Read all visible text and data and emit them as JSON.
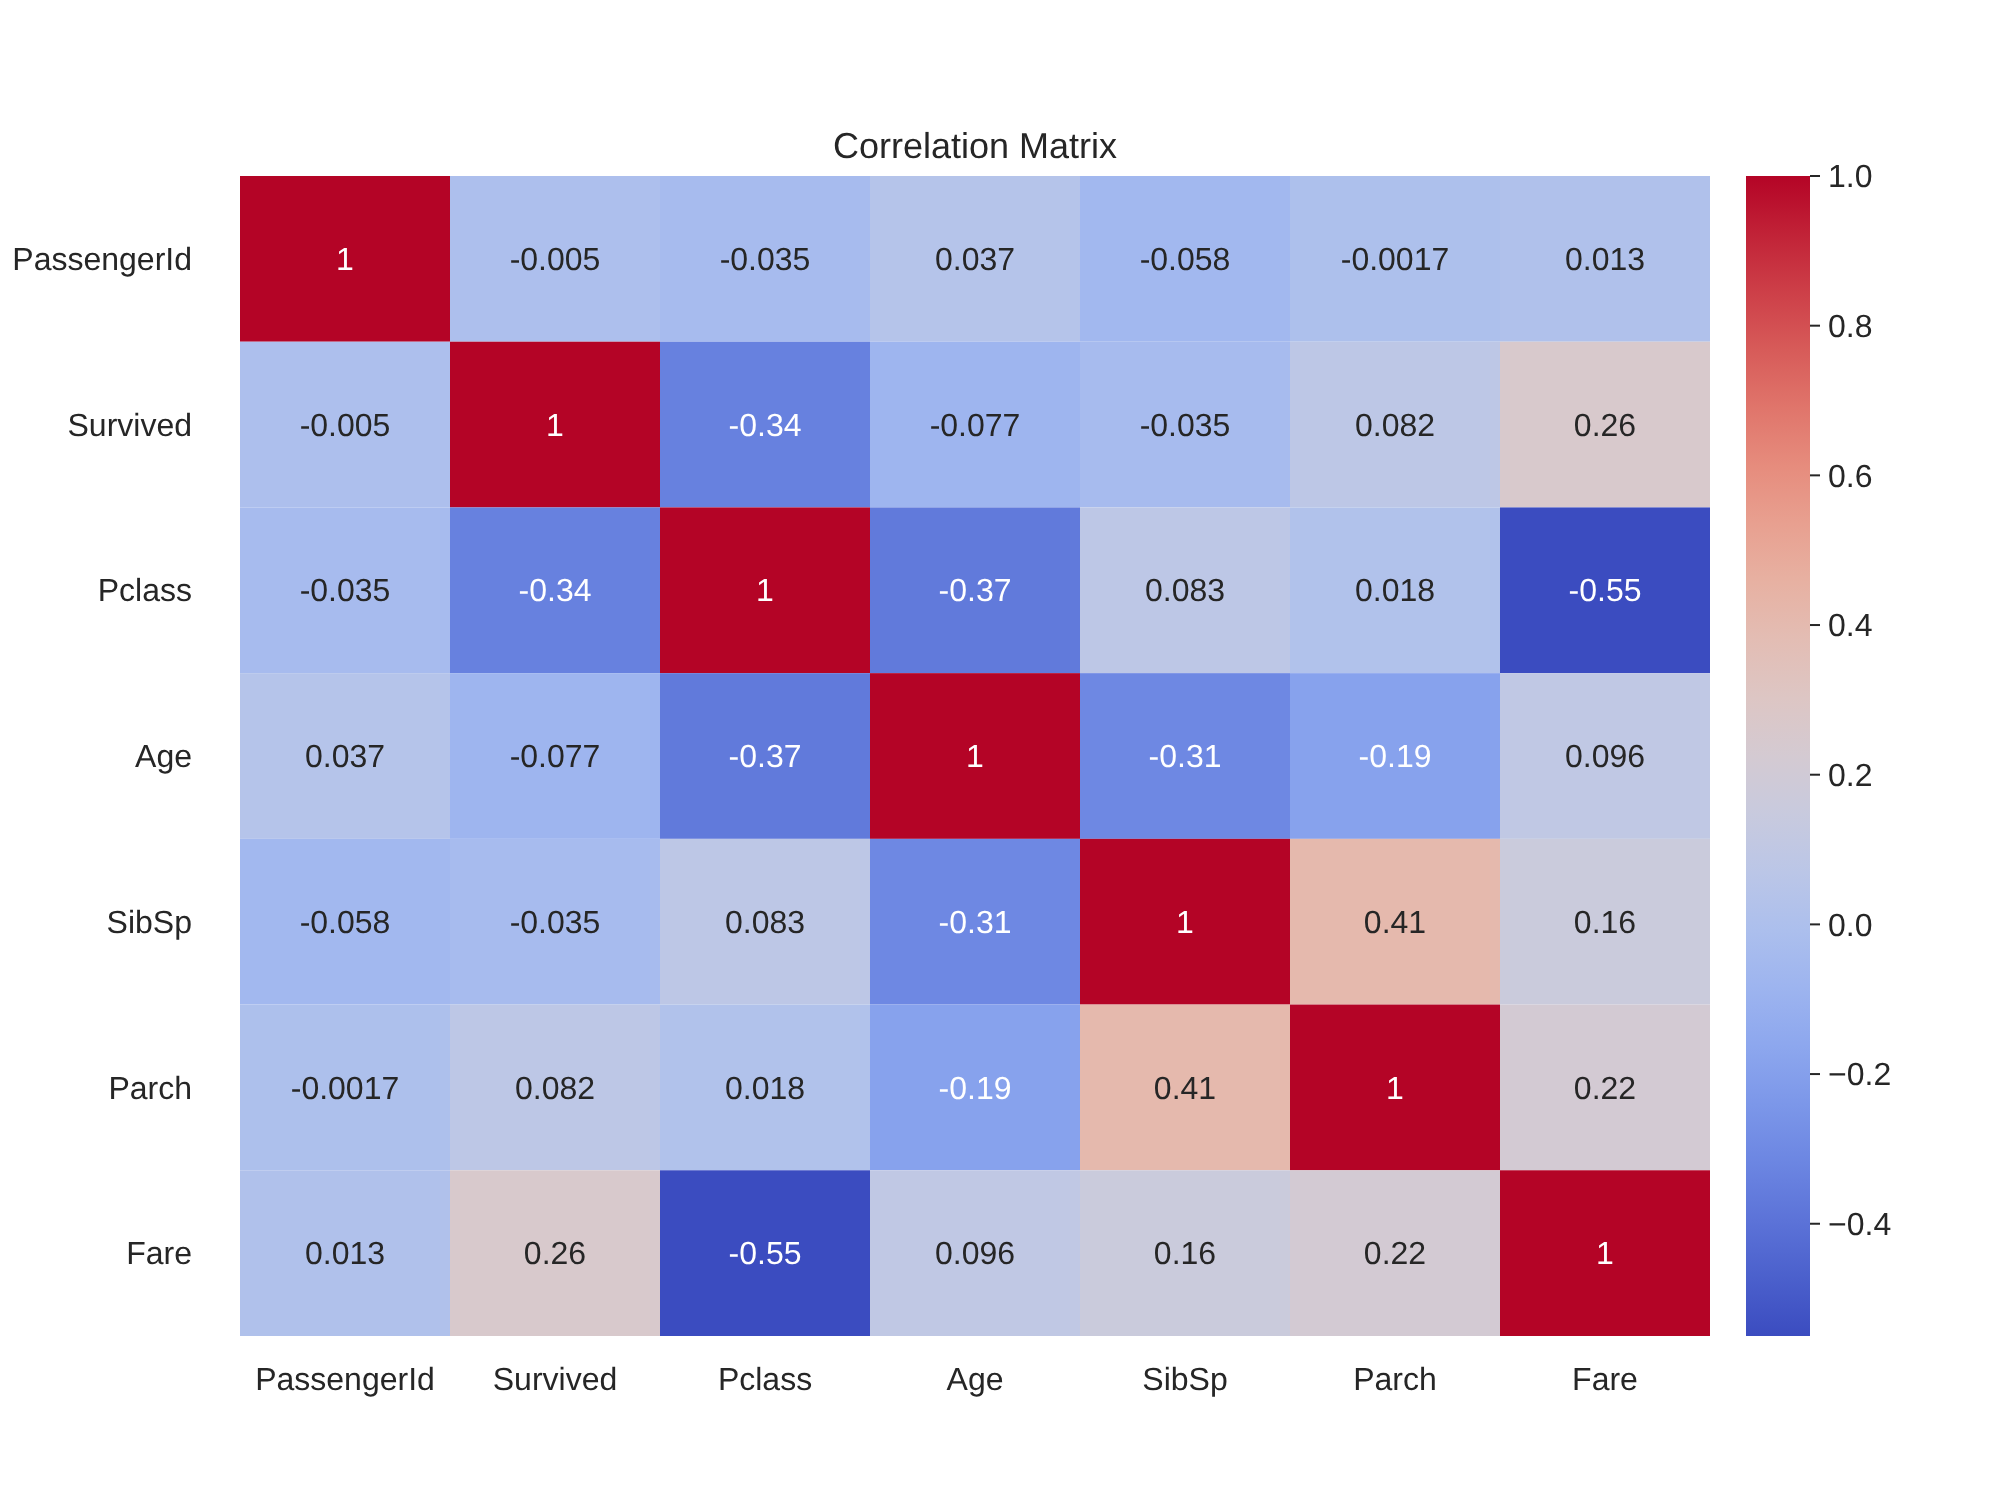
{
  "chart_data": {
    "type": "heatmap",
    "title": "Correlation Matrix",
    "categories": [
      "PassengerId",
      "Survived",
      "Pclass",
      "Age",
      "SibSp",
      "Parch",
      "Fare"
    ],
    "y_categories": [
      "PassengerId",
      "Survived",
      "Pclass",
      "Age",
      "SibSp",
      "Parch",
      "Fare"
    ],
    "cells": [
      [
        1,
        -0.005,
        -0.035,
        0.037,
        -0.058,
        -0.0017,
        0.013
      ],
      [
        -0.005,
        1,
        -0.34,
        -0.077,
        -0.035,
        0.082,
        0.26
      ],
      [
        -0.035,
        -0.34,
        1,
        -0.37,
        0.083,
        0.018,
        -0.55
      ],
      [
        0.037,
        -0.077,
        -0.37,
        1,
        -0.31,
        -0.19,
        0.096
      ],
      [
        -0.058,
        -0.035,
        0.083,
        -0.31,
        1,
        0.41,
        0.16
      ],
      [
        -0.0017,
        0.082,
        0.018,
        -0.19,
        0.41,
        1,
        0.22
      ],
      [
        0.013,
        0.26,
        -0.55,
        0.096,
        0.16,
        0.22,
        1
      ]
    ],
    "clim": [
      -0.55,
      1
    ],
    "cticks": [
      {
        "value": -0.4,
        "label": "−0.4"
      },
      {
        "value": -0.2,
        "label": "−0.2"
      },
      {
        "value": 0,
        "label": "0.0"
      },
      0.2,
      0.4,
      0.6,
      0.8,
      {
        "value": 1,
        "label": "1.0"
      }
    ],
    "data_labels": true
  }
}
